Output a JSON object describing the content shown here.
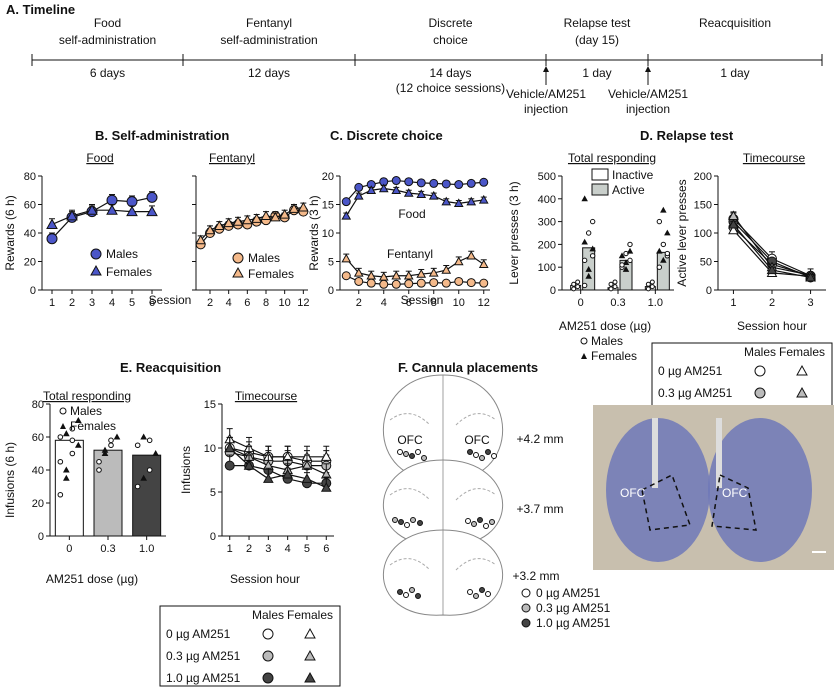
{
  "colors": {
    "males_food": "#4b56c8",
    "females_food": "#4b56c8",
    "fentanyl": "#f4b98a",
    "inactive": "#ffffff",
    "active": "#c9cfcb",
    "dose0": "#ffffff",
    "dose03": "#bbbbbb",
    "dose10": "#444444",
    "brain_bg": "#c8bfae",
    "brain_stain": "#6f78b8"
  },
  "timeline": {
    "title": "A. Timeline",
    "phases": [
      {
        "name": "Food\nself-administration",
        "duration": "6 days"
      },
      {
        "name": "Fentanyl\nself-administration",
        "duration": "12 days"
      },
      {
        "name": "Discrete\nchoice",
        "duration": "14 days\n(12 choice sessions)"
      },
      {
        "name": "Relapse test\n(day 15)",
        "duration": "1 day"
      },
      {
        "name": "Reacquisition",
        "duration": "1 day"
      }
    ],
    "injection_label": "Vehicle/AM251\ninjection"
  },
  "panel_b": {
    "title": "B. Self-administration",
    "food_title": "Food",
    "fentanyl_title": "Fentanyl",
    "ylabel": "Rewards (6 h)",
    "xlabel": "Session",
    "legend": [
      "Males",
      "Females"
    ]
  },
  "panel_c": {
    "title": "C. Discrete choice",
    "ylabel": "Rewards (3 h)",
    "xlabel": "Session",
    "food_label": "Food",
    "fentanyl_label": "Fentanyl"
  },
  "panel_d": {
    "title": "D. Relapse test",
    "total_title": "Total responding",
    "time_title": "Timecourse",
    "total_ylabel": "Lever presses (3 h)",
    "total_xlabel": "AM251 dose (µg)",
    "time_ylabel": "Active lever presses",
    "time_xlabel": "Session hour",
    "legend_bars": [
      "Inactive",
      "Active"
    ],
    "legend_sex": [
      "Males",
      "Females"
    ]
  },
  "panel_e": {
    "title": "E. Reacquisition",
    "total_title": "Total responding",
    "time_title": "Timecourse",
    "total_ylabel": "Infusions (6 h)",
    "total_xlabel": "AM251 dose (µg)",
    "time_ylabel": "Infusions",
    "time_xlabel": "Session hour",
    "legend_sex": [
      "Males",
      "Females"
    ]
  },
  "panel_f": {
    "title": "F. Cannula placements",
    "coords": [
      "+4.2 mm",
      "+3.7 mm",
      "+3.2 mm"
    ],
    "ofc": "OFC",
    "legend": [
      "0 µg AM251",
      "0.3 µg AM251",
      "1.0 µg AM251"
    ]
  },
  "dose_legend": {
    "header_m": "Males",
    "header_f": "Females",
    "rows": [
      "0 µg AM251",
      "0.3 µg AM251",
      "1.0 µg AM251"
    ]
  },
  "chart_data": [
    {
      "id": "food_sa",
      "type": "line",
      "x": [
        1,
        2,
        3,
        4,
        5,
        6
      ],
      "xlim": [
        0.5,
        6.5
      ],
      "ylim": [
        0,
        80
      ],
      "yticks": [
        0,
        20,
        40,
        60,
        80
      ],
      "series": [
        {
          "name": "Males",
          "values": [
            36,
            51,
            55,
            63,
            62,
            65
          ]
        },
        {
          "name": "Females",
          "values": [
            46,
            52,
            56,
            56,
            55,
            55
          ]
        }
      ]
    },
    {
      "id": "fent_sa",
      "type": "line",
      "x": [
        1,
        2,
        3,
        4,
        5,
        6,
        7,
        8,
        9,
        10,
        11,
        12
      ],
      "xlim": [
        0.5,
        12.5
      ],
      "ylim": [
        0,
        80
      ],
      "xticks": [
        2,
        4,
        6,
        8,
        10,
        12
      ],
      "series": [
        {
          "name": "Males",
          "values": [
            32,
            40,
            43,
            45,
            46,
            46,
            48,
            49,
            52,
            51,
            56,
            55
          ]
        },
        {
          "name": "Females",
          "values": [
            35,
            42,
            45,
            47,
            48,
            49,
            50,
            52,
            51,
            53,
            57,
            58
          ]
        }
      ]
    },
    {
      "id": "choice",
      "type": "line",
      "x": [
        1,
        2,
        3,
        4,
        5,
        6,
        7,
        8,
        9,
        10,
        11,
        12
      ],
      "xlim": [
        0.5,
        12.5
      ],
      "ylim": [
        0,
        20
      ],
      "yticks": [
        0,
        5,
        10,
        15,
        20
      ],
      "xticks": [
        2,
        4,
        6,
        8,
        10,
        12
      ],
      "series": [
        {
          "name": "Food males",
          "values": [
            15.5,
            18,
            18.5,
            19,
            19.2,
            19,
            18.8,
            18.7,
            18.6,
            18.5,
            18.7,
            18.9
          ]
        },
        {
          "name": "Food females",
          "values": [
            13,
            16.5,
            17.5,
            17.8,
            17.5,
            17,
            16.8,
            16.5,
            15.5,
            15.2,
            15.5,
            15.8
          ]
        },
        {
          "name": "Fentanyl males",
          "values": [
            2.5,
            1.5,
            1.2,
            1,
            1,
            1.1,
            1.2,
            1.3,
            1.2,
            1.5,
            1.3,
            1.2
          ]
        },
        {
          "name": "Fentanyl females",
          "values": [
            5.5,
            3,
            2.5,
            2.3,
            2.5,
            2.5,
            2.8,
            3,
            3.5,
            5,
            6,
            4.5
          ]
        }
      ]
    },
    {
      "id": "relapse_total",
      "type": "bar",
      "categories": [
        "0",
        "0.3",
        "1.0"
      ],
      "ylim": [
        0,
        500
      ],
      "yticks": [
        0,
        100,
        200,
        300,
        400,
        500
      ],
      "series": [
        {
          "name": "Inactive",
          "values": [
            20,
            10,
            15
          ]
        },
        {
          "name": "Active",
          "values": [
            185,
            130,
            165
          ]
        }
      ]
    },
    {
      "id": "relapse_time",
      "type": "line",
      "x": [
        1,
        2,
        3
      ],
      "xlim": [
        0.6,
        3.4
      ],
      "ylim": [
        0,
        200
      ],
      "yticks": [
        0,
        50,
        100,
        150,
        200
      ],
      "series": [
        {
          "values": [
            125,
            55,
            25
          ]
        },
        {
          "values": [
            110,
            45,
            25
          ]
        },
        {
          "values": [
            120,
            50,
            22
          ]
        },
        {
          "values": [
            105,
            30,
            24
          ]
        },
        {
          "values": [
            130,
            40,
            26
          ]
        },
        {
          "values": [
            115,
            35,
            22
          ]
        }
      ]
    },
    {
      "id": "reacq_total",
      "type": "bar",
      "categories": [
        "0",
        "0.3",
        "1.0"
      ],
      "ylim": [
        0,
        80
      ],
      "yticks": [
        0,
        20,
        40,
        60,
        80
      ],
      "series": [
        {
          "name": "Infusions",
          "values": [
            58,
            52,
            49
          ]
        }
      ]
    },
    {
      "id": "reacq_time",
      "type": "line",
      "x": [
        1,
        2,
        3,
        4,
        5,
        6
      ],
      "xlim": [
        0.6,
        6.4
      ],
      "ylim": [
        0,
        15
      ],
      "yticks": [
        0,
        5,
        10,
        15
      ],
      "series": [
        {
          "values": [
            10,
            9.5,
            9,
            9,
            8.5,
            8.5
          ]
        },
        {
          "values": [
            9.5,
            9,
            8.5,
            8.5,
            8,
            8
          ]
        },
        {
          "values": [
            8,
            8,
            7.5,
            6.5,
            6,
            6
          ]
        },
        {
          "values": [
            11,
            10,
            9,
            9,
            9,
            9
          ]
        },
        {
          "values": [
            10,
            9,
            8,
            7.5,
            8,
            7
          ]
        },
        {
          "values": [
            10,
            8,
            6.5,
            7,
            6.5,
            5.5
          ]
        }
      ]
    }
  ]
}
